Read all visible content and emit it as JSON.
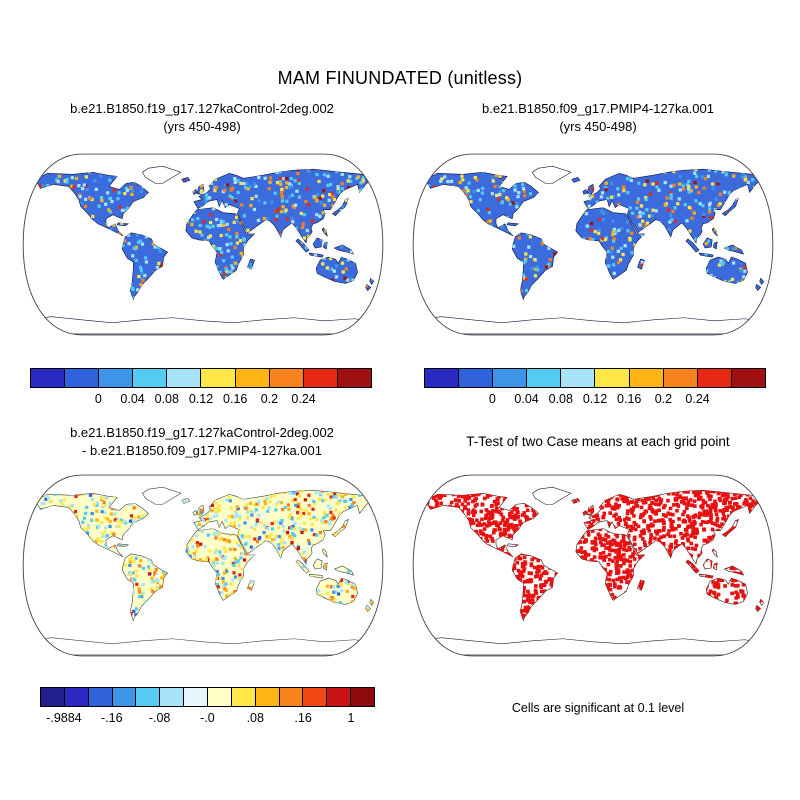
{
  "title": "MAM FINUNDATED (unitless)",
  "panels": {
    "top_left": {
      "line1": "b.e21.B1850.f19_g17.127kaControl-2deg.002",
      "line2": "(yrs 450-498)"
    },
    "top_right": {
      "line1": "b.e21.B1850.f09_g17.PMIP4-127ka.001",
      "line2": "(yrs 450-498)"
    },
    "bottom_left": {
      "line1": "b.e21.B1850.f19_g17.127kaControl-2deg.002",
      "line2": "- b.e21.B1850.f09_g17.PMIP4-127ka.001"
    },
    "bottom_right": {
      "line1": "T-Test of two Case means at each grid point",
      "caption": "Cells are significant at 0.1 level"
    }
  },
  "colorbars": {
    "mean": {
      "colors": [
        "#2B2BC4",
        "#2F62DB",
        "#3E95E8",
        "#54CBF0",
        "#A8E4F8",
        "#FFE74A",
        "#FFB414",
        "#F8821E",
        "#E62814",
        "#A01010"
      ],
      "ticks": [
        "0",
        "0.04",
        "0.08",
        "0.12",
        "0.16",
        "0.2",
        "0.24"
      ]
    },
    "diff": {
      "colors": [
        "#20208C",
        "#2B2BC4",
        "#2F62DB",
        "#3E95E8",
        "#54CBF0",
        "#A8E4F8",
        "#E6F6FC",
        "#FFFFC8",
        "#FFE74A",
        "#FFB414",
        "#F8821E",
        "#F04814",
        "#C81414",
        "#8C0A0A"
      ],
      "ticks": [
        "-.9884",
        "-.16",
        "-.08",
        "-.0",
        ".08",
        ".16",
        "1"
      ]
    }
  },
  "maps": {
    "case1": {
      "land_fill": "#3B6BDC",
      "coast": "#101840",
      "noise": {
        "seed": 11,
        "count": 1500,
        "cell": 3.2,
        "colors": [
          [
            "#54CBF0",
            0.26
          ],
          [
            "#A8E4F8",
            0.2
          ],
          [
            "#3E95E8",
            0.12
          ],
          [
            "#FFE74A",
            0.15
          ],
          [
            "#FFB414",
            0.1
          ],
          [
            "#F8821E",
            0.08
          ],
          [
            "#E62814",
            0.06
          ],
          [
            "#A01010",
            0.03
          ]
        ]
      }
    },
    "case2": {
      "land_fill": "#3B6BDC",
      "coast": "#101840",
      "noise": {
        "seed": 22,
        "count": 1400,
        "cell": 3.2,
        "colors": [
          [
            "#54CBF0",
            0.26
          ],
          [
            "#A8E4F8",
            0.2
          ],
          [
            "#3E95E8",
            0.12
          ],
          [
            "#FFE74A",
            0.15
          ],
          [
            "#FFB414",
            0.1
          ],
          [
            "#F8821E",
            0.08
          ],
          [
            "#E62814",
            0.06
          ],
          [
            "#A01010",
            0.03
          ]
        ]
      }
    },
    "diff": {
      "land_fill": "#FFFFC8",
      "coast": "#404040",
      "noise": {
        "seed": 33,
        "count": 2600,
        "cell": 3.2,
        "colors": [
          [
            "#A8E4F8",
            0.25
          ],
          [
            "#54CBF0",
            0.12
          ],
          [
            "#3E95E8",
            0.05
          ],
          [
            "#2F62DB",
            0.03
          ],
          [
            "#FFE74A",
            0.24
          ],
          [
            "#FFB414",
            0.11
          ],
          [
            "#F8821E",
            0.07
          ],
          [
            "#E62814",
            0.06
          ],
          [
            "#C81414",
            0.03
          ],
          [
            "#E6F6FC",
            0.04
          ]
        ]
      }
    },
    "ttest": {
      "land_fill": "#FFFFFF",
      "coast": "#202020",
      "noise": {
        "seed": 44,
        "count": 4200,
        "cell": 3.6,
        "colors": [
          [
            "#E81010",
            1
          ]
        ]
      }
    }
  },
  "chart_data": [
    {
      "type": "heatmap",
      "panel": "top_left",
      "title": "b.e21.B1850.f19_g17.127kaControl-2deg.002",
      "subtitle": "(yrs 450-498)",
      "variable": "MAM FINUNDATED",
      "units": "unitless",
      "projection": "robinson global map",
      "colorbar_levels": [
        0,
        0.04,
        0.08,
        0.12,
        0.16,
        0.2,
        0.24
      ],
      "colorbar_colors": [
        "#2B2BC4",
        "#2F62DB",
        "#3E95E8",
        "#54CBF0",
        "#A8E4F8",
        "#FFE74A",
        "#FFB414",
        "#F8821E",
        "#E62814",
        "#A01010"
      ],
      "summary": "Inundated fraction over land; most land cells 0-0.04 (blue) with scattered higher values up to >0.24 (yellow to dark red) over Canada, the Amazon, the Sahel, South and East Asia; Greenland and Antarctica unshaded."
    },
    {
      "type": "heatmap",
      "panel": "top_right",
      "title": "b.e21.B1850.f09_g17.PMIP4-127ka.001",
      "subtitle": "(yrs 450-498)",
      "variable": "MAM FINUNDATED",
      "units": "unitless",
      "projection": "robinson global map",
      "colorbar_levels": [
        0,
        0.04,
        0.08,
        0.12,
        0.16,
        0.2,
        0.24
      ],
      "colorbar_colors": [
        "#2B2BC4",
        "#2F62DB",
        "#3E95E8",
        "#54CBF0",
        "#A8E4F8",
        "#FFE74A",
        "#FFB414",
        "#F8821E",
        "#E62814",
        "#A01010"
      ],
      "summary": "Same field as left panel for the PMIP4-127ka case; land mostly 0-0.04 (blue) with scattered higher-value cells."
    },
    {
      "type": "heatmap",
      "panel": "bottom_left",
      "title": "b.e21.B1850.f19_g17.127kaControl-2deg.002 - b.e21.B1850.f09_g17.PMIP4-127ka.001",
      "variable": "MAM FINUNDATED difference",
      "units": "unitless",
      "projection": "robinson global map",
      "colorbar_levels": [
        -0.9884,
        -0.16,
        -0.08,
        -0.0,
        0.08,
        0.16,
        1
      ],
      "colorbar_colors": [
        "#20208C",
        "#2B2BC4",
        "#2F62DB",
        "#3E95E8",
        "#54CBF0",
        "#A8E4F8",
        "#E6F6FC",
        "#FFFFC8",
        "#FFE74A",
        "#FFB414",
        "#F8821E",
        "#F04814",
        "#C81414",
        "#8C0A0A"
      ],
      "summary": "Difference of the two case means; most land near zero (pale yellow) with scattered positive (yellow-orange-red) and negative (cyan-blue) differences; range -0.9884 to 1."
    },
    {
      "type": "heatmap",
      "panel": "bottom_right",
      "title": "T-Test of two Case means at each grid point",
      "note": "Cells are significant at 0.1 level",
      "projection": "robinson global map",
      "summary": "Red cells mark grid points where the two case means differ significantly at the 0.1 level; red covers most land areas, oceans blank."
    }
  ]
}
